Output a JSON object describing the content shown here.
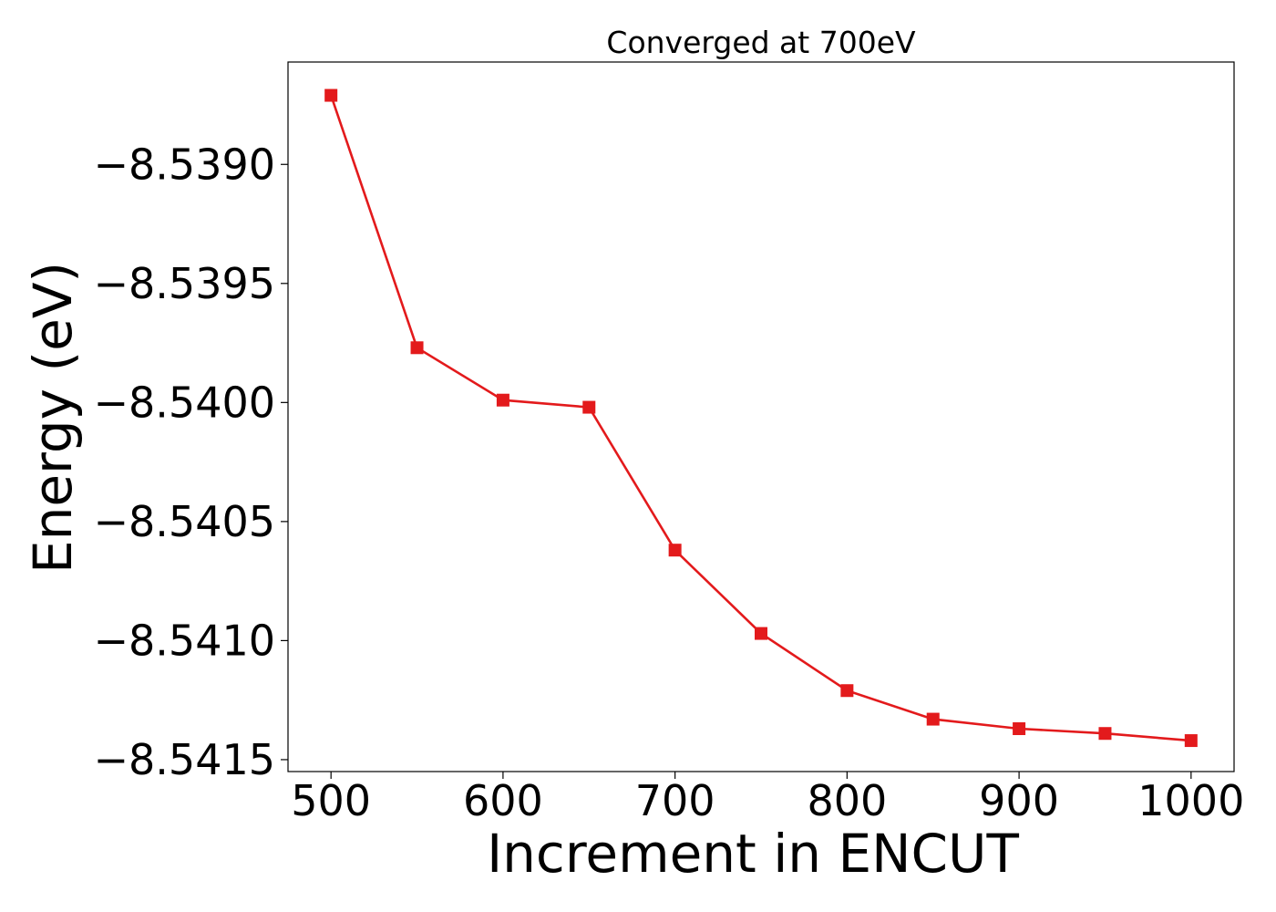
{
  "chart_data": {
    "type": "line",
    "title": "Converged at 700eV",
    "xlabel": "Increment in ENCUT",
    "ylabel": "Energy (eV)",
    "x": [
      500,
      550,
      600,
      650,
      700,
      750,
      800,
      850,
      900,
      950,
      1000
    ],
    "series": [
      {
        "values": [
          -8.53871,
          -8.53977,
          -8.53999,
          -8.54002,
          -8.54062,
          -8.54097,
          -8.54121,
          -8.54133,
          -8.54137,
          -8.54139,
          -8.54142
        ],
        "color": "#e31a1c",
        "marker": "square"
      }
    ],
    "xticks": [
      500,
      600,
      700,
      800,
      900,
      1000
    ],
    "xtick_labels": [
      "500",
      "600",
      "700",
      "800",
      "900",
      "1000"
    ],
    "yticks": [
      -8.539,
      -8.5395,
      -8.54,
      -8.5405,
      -8.541,
      -8.5415
    ],
    "ytick_labels": [
      "−8.5390",
      "−8.5395",
      "−8.5400",
      "−8.5405",
      "−8.5410",
      "−8.5415"
    ],
    "xlim": [
      475,
      1025
    ],
    "ylim": [
      -8.54155,
      -8.53857
    ],
    "grid": false,
    "legend": "none"
  }
}
